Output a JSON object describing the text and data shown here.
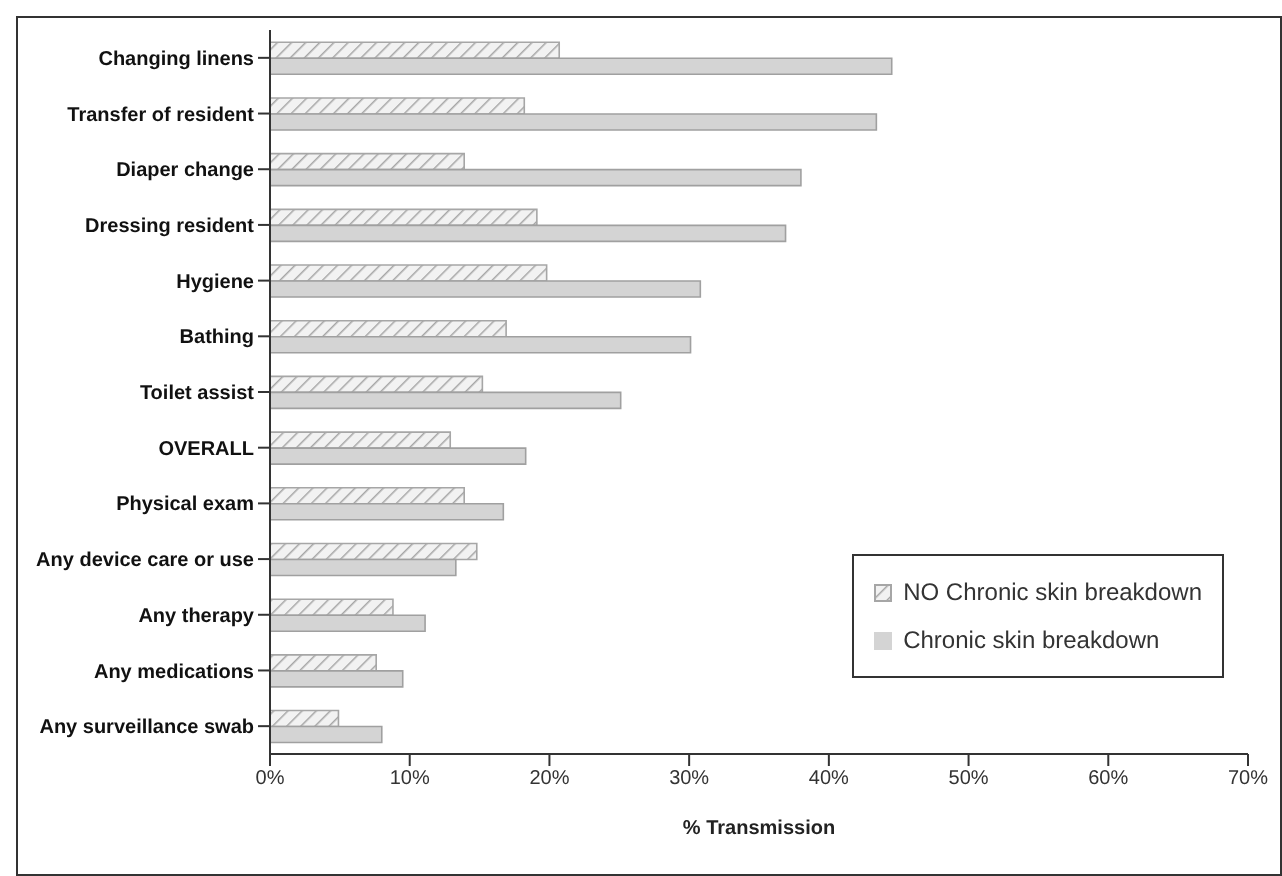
{
  "chart_data": {
    "type": "bar",
    "orientation": "horizontal",
    "xlabel": "% Transmission",
    "categories": [
      "Changing linens",
      "Transfer of resident",
      "Diaper change",
      "Dressing resident",
      "Hygiene",
      "Bathing",
      "Toilet assist",
      "OVERALL",
      "Physical exam",
      "Any device care or use",
      "Any therapy",
      "Any medications",
      "Any surveillance swab"
    ],
    "series": [
      {
        "name": "NO Chronic skin breakdown",
        "color": "#a6a6a6",
        "values": [
          20.7,
          18.2,
          13.9,
          19.1,
          19.8,
          16.9,
          15.2,
          12.9,
          13.9,
          14.8,
          8.8,
          7.6,
          4.9
        ]
      },
      {
        "name": "Chronic skin breakdown",
        "color": "#d4d4d4",
        "values": [
          44.5,
          43.4,
          38.0,
          36.9,
          30.8,
          30.1,
          25.1,
          18.3,
          16.7,
          13.3,
          11.1,
          9.5,
          8.0
        ]
      }
    ],
    "xlim": [
      0,
      70
    ],
    "xticks": [
      {
        "value": 0,
        "label": "0%"
      },
      {
        "value": 10,
        "label": "10%"
      },
      {
        "value": 20,
        "label": "20%"
      },
      {
        "value": 30,
        "label": "30%"
      },
      {
        "value": 40,
        "label": "40%"
      },
      {
        "value": 50,
        "label": "50%"
      },
      {
        "value": 60,
        "label": "60%"
      },
      {
        "value": 70,
        "label": "70%"
      }
    ],
    "legend": "right",
    "grid": false
  }
}
